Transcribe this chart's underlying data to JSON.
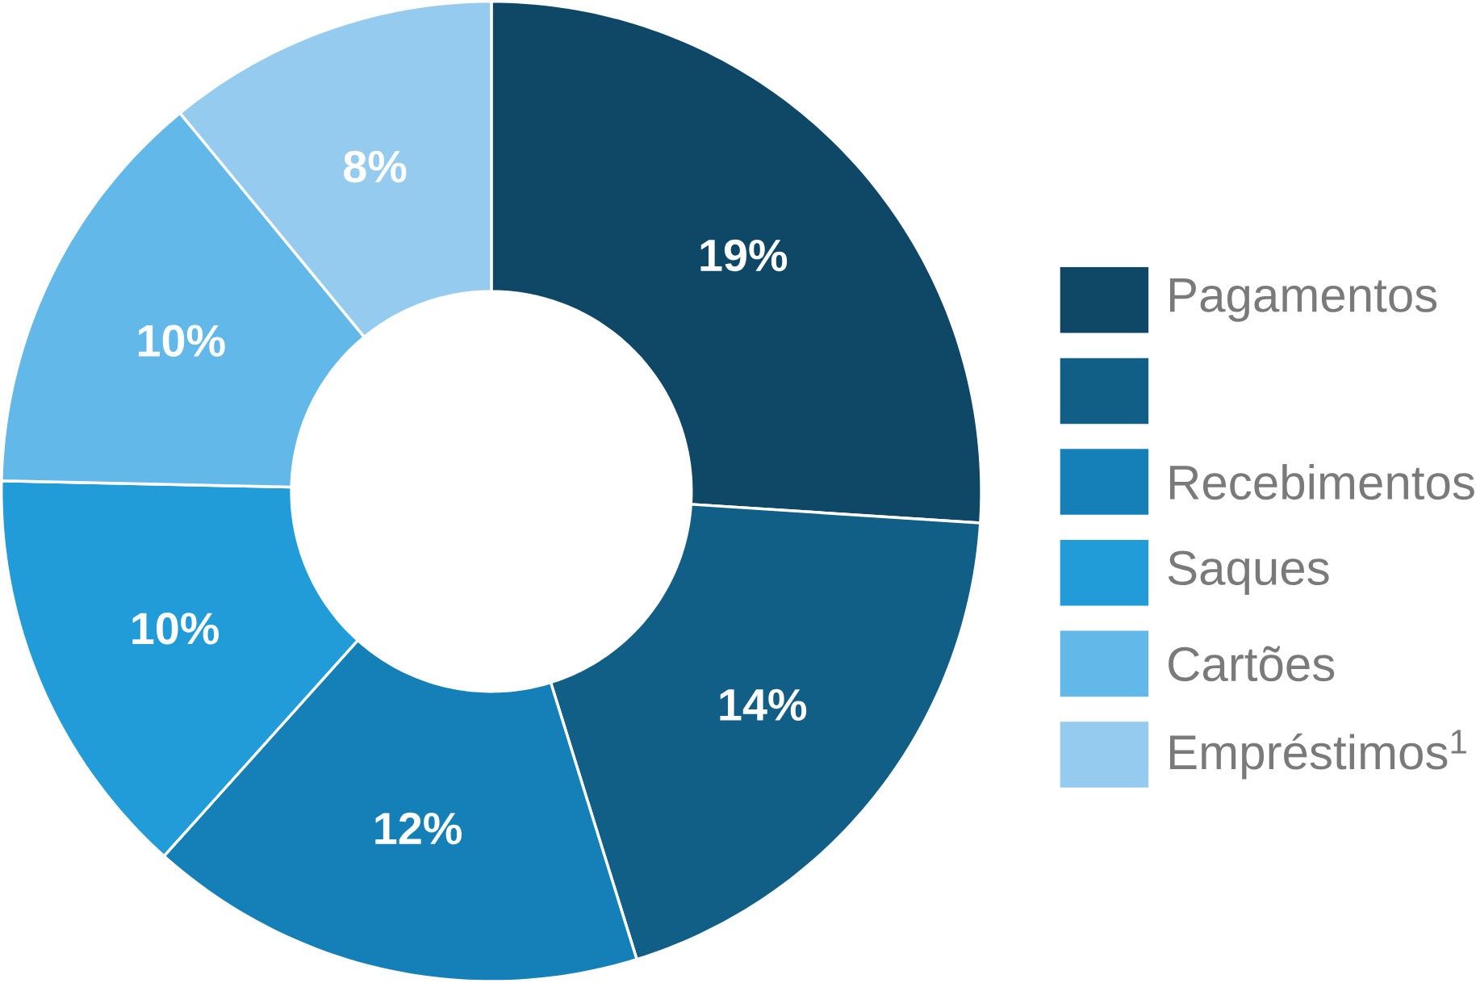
{
  "chart_data": {
    "type": "donut",
    "categories": [
      "Pagamentos",
      null,
      "Recebimentos",
      "Saques",
      "Cartões",
      "Empréstimos$^{1}$"
    ],
    "values": [
      19,
      14,
      12,
      10,
      10,
      8
    ],
    "colors": [
      "#0e4866",
      "#115f86",
      "#1580b8",
      "#229bd9",
      "#62b8e8",
      "#94cbef"
    ],
    "value_labels": [
      "19%",
      "14%",
      "12%",
      "10%",
      "10%",
      "8%"
    ],
    "legend": "right"
  }
}
